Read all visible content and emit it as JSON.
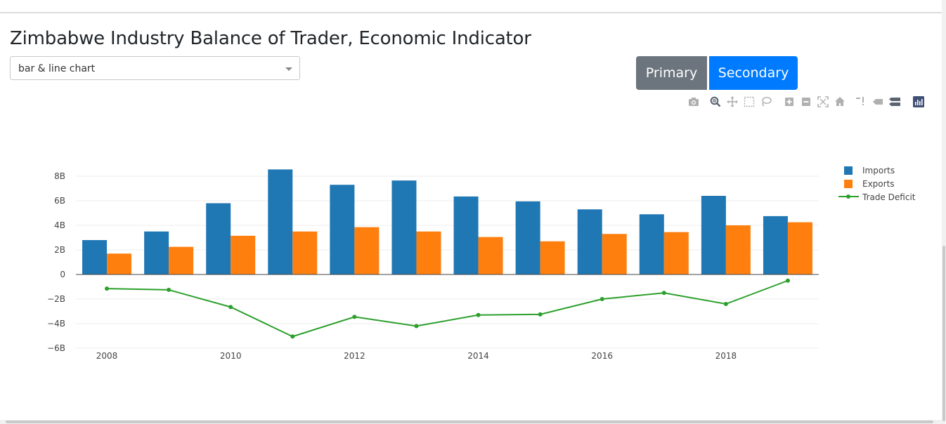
{
  "page": {
    "title": "Zimbabwe Industry Balance of Trader, Economic Indicator",
    "chart_type_select": {
      "value": "bar & line chart"
    },
    "buttons": {
      "primary": "Primary",
      "secondary": "Secondary"
    },
    "modebar_icons": [
      "camera-icon",
      "zoom-icon",
      "pan-icon",
      "box-select-icon",
      "lasso-select-icon",
      "zoom-in-icon",
      "zoom-out-icon",
      "autoscale-icon",
      "reset-axes-icon",
      "spike-lines-icon",
      "hover-closest-icon",
      "hover-compare-icon",
      "plotly-logo-icon"
    ]
  },
  "colors": {
    "imports": "#1f77b4",
    "exports": "#ff7f0e",
    "deficit": "#2ca02c",
    "grid": "#eeeeee",
    "zero": "#444444"
  },
  "chart_data": {
    "type": "bar",
    "x": [
      2008,
      2009,
      2010,
      2011,
      2012,
      2013,
      2014,
      2015,
      2016,
      2017,
      2018,
      2019
    ],
    "series": [
      {
        "name": "Imports",
        "type": "bar",
        "values": [
          2.8,
          3.5,
          5.8,
          8.55,
          7.3,
          7.65,
          6.35,
          5.95,
          5.3,
          4.9,
          6.4,
          4.75
        ]
      },
      {
        "name": "Exports",
        "type": "bar",
        "values": [
          1.7,
          2.25,
          3.15,
          3.5,
          3.85,
          3.5,
          3.05,
          2.7,
          3.3,
          3.45,
          4.0,
          4.25
        ]
      },
      {
        "name": "Trade Deficit",
        "type": "line",
        "values": [
          -1.15,
          -1.25,
          -2.65,
          -5.05,
          -3.45,
          -4.2,
          -3.3,
          -3.25,
          -2.0,
          -1.5,
          -2.4,
          -0.5
        ]
      }
    ],
    "x_ticks": [
      2008,
      2010,
      2012,
      2014,
      2016,
      2018
    ],
    "y_ticks": [
      -6,
      -4,
      -2,
      0,
      2,
      4,
      6,
      8
    ],
    "y_tick_labels": [
      "−6B",
      "−4B",
      "−2B",
      "0",
      "2B",
      "4B",
      "6B",
      "8B"
    ],
    "ylim": [
      -6,
      8.5
    ],
    "grid": true,
    "legend": "right"
  }
}
